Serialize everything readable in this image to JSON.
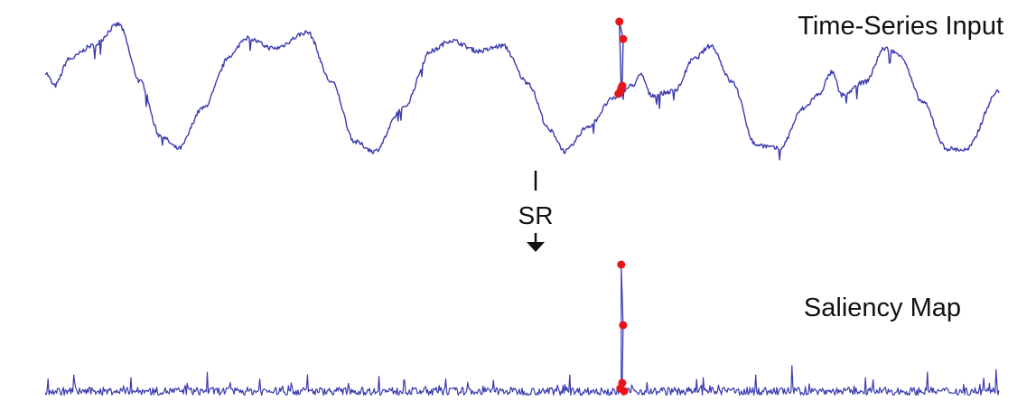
{
  "labels": {
    "top_title": "Time-Series Input",
    "operation": "SR",
    "bottom_title": "Saliency Map"
  },
  "colors": {
    "series_line": "#3b3bb0",
    "anomaly_points": "#e8141c",
    "arrow": "#111111",
    "background": "#ffffff"
  },
  "chart_data": [
    {
      "type": "line",
      "title": "Time-Series Input",
      "x_range": [
        0,
        1000
      ],
      "key_points": [
        {
          "x": 0,
          "y": 0.62
        },
        {
          "x": 10,
          "y": 0.52
        },
        {
          "x": 25,
          "y": 0.72
        },
        {
          "x": 50,
          "y": 0.82
        },
        {
          "x": 77,
          "y": 0.98
        },
        {
          "x": 100,
          "y": 0.55
        },
        {
          "x": 120,
          "y": 0.15
        },
        {
          "x": 140,
          "y": 0.05
        },
        {
          "x": 165,
          "y": 0.35
        },
        {
          "x": 195,
          "y": 0.75
        },
        {
          "x": 210,
          "y": 0.88
        },
        {
          "x": 240,
          "y": 0.8
        },
        {
          "x": 275,
          "y": 0.92
        },
        {
          "x": 300,
          "y": 0.55
        },
        {
          "x": 325,
          "y": 0.1
        },
        {
          "x": 345,
          "y": 0.03
        },
        {
          "x": 375,
          "y": 0.35
        },
        {
          "x": 405,
          "y": 0.78
        },
        {
          "x": 425,
          "y": 0.86
        },
        {
          "x": 455,
          "y": 0.78
        },
        {
          "x": 480,
          "y": 0.82
        },
        {
          "x": 505,
          "y": 0.55
        },
        {
          "x": 530,
          "y": 0.18
        },
        {
          "x": 545,
          "y": 0.03
        },
        {
          "x": 570,
          "y": 0.22
        },
        {
          "x": 595,
          "y": 0.42
        },
        {
          "x": 605,
          "y": 0.48
        },
        {
          "x": 615,
          "y": 0.52
        },
        {
          "x": 625,
          "y": 0.6
        },
        {
          "x": 635,
          "y": 0.45
        },
        {
          "x": 660,
          "y": 0.48
        },
        {
          "x": 680,
          "y": 0.72
        },
        {
          "x": 698,
          "y": 0.82
        },
        {
          "x": 720,
          "y": 0.55
        },
        {
          "x": 745,
          "y": 0.08
        },
        {
          "x": 770,
          "y": 0.05
        },
        {
          "x": 795,
          "y": 0.35
        },
        {
          "x": 810,
          "y": 0.45
        },
        {
          "x": 825,
          "y": 0.62
        },
        {
          "x": 835,
          "y": 0.45
        },
        {
          "x": 860,
          "y": 0.55
        },
        {
          "x": 880,
          "y": 0.8
        },
        {
          "x": 895,
          "y": 0.76
        },
        {
          "x": 920,
          "y": 0.4
        },
        {
          "x": 945,
          "y": 0.05
        },
        {
          "x": 965,
          "y": 0.04
        },
        {
          "x": 1000,
          "y": 0.48
        }
      ],
      "anomaly": {
        "x": 605,
        "points": [
          {
            "x": 602,
            "y": 1.0
          },
          {
            "x": 606,
            "y": 0.87
          },
          {
            "x": 605,
            "y": 0.52
          },
          {
            "x": 603,
            "y": 0.48
          },
          {
            "x": 601,
            "y": 0.46
          },
          {
            "x": 604,
            "y": 0.5
          }
        ]
      }
    },
    {
      "type": "line",
      "title": "Saliency Map",
      "x_range": [
        0,
        1000
      ],
      "baseline": 0.05,
      "noise_spikes": [
        {
          "x": 30,
          "y": 0.18
        },
        {
          "x": 90,
          "y": 0.16
        },
        {
          "x": 170,
          "y": 0.2
        },
        {
          "x": 225,
          "y": 0.15
        },
        {
          "x": 275,
          "y": 0.18
        },
        {
          "x": 350,
          "y": 0.17
        },
        {
          "x": 420,
          "y": 0.15
        },
        {
          "x": 470,
          "y": 0.14
        },
        {
          "x": 550,
          "y": 0.18
        },
        {
          "x": 690,
          "y": 0.16
        },
        {
          "x": 745,
          "y": 0.18
        },
        {
          "x": 783,
          "y": 0.25
        },
        {
          "x": 860,
          "y": 0.16
        },
        {
          "x": 925,
          "y": 0.2
        },
        {
          "x": 997,
          "y": 0.22
        }
      ],
      "anomaly": {
        "x": 605,
        "points": [
          {
            "x": 604,
            "y": 1.0
          },
          {
            "x": 606,
            "y": 0.55
          },
          {
            "x": 605,
            "y": 0.12
          },
          {
            "x": 603,
            "y": 0.08
          },
          {
            "x": 607,
            "y": 0.06
          }
        ]
      }
    }
  ]
}
